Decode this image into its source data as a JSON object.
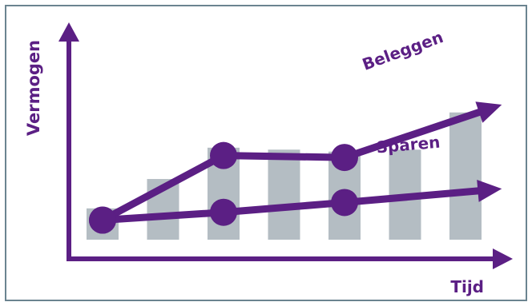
{
  "chart_data": {
    "type": "line",
    "xlabel": "Tijd",
    "ylabel": "Vermogen",
    "series": [
      {
        "name": "Beleggen",
        "values": [
          1.0,
          4.3,
          4.2,
          6.9
        ],
        "x": [
          0,
          2,
          4,
          6.6
        ]
      },
      {
        "name": "Sparen",
        "values": [
          1.0,
          1.4,
          1.9,
          2.6
        ],
        "x": [
          0,
          2,
          4,
          6.6
        ]
      }
    ],
    "bars": [
      1.6,
      3.1,
      4.7,
      4.6,
      4.5,
      4.6,
      6.5
    ],
    "colors": {
      "line": "#5b1f84",
      "bar": "#b4bdc3",
      "frame": "#6b8490"
    }
  }
}
